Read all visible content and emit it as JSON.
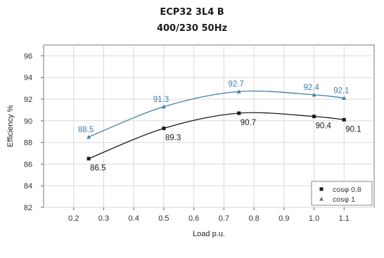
{
  "chart_data": {
    "type": "line",
    "title": "ECP32 3L4 B",
    "subtitle": "400/230 50Hz",
    "xlabel": "Load p.u.",
    "ylabel": "Efficiency %",
    "xlim": [
      0.1,
      1.2
    ],
    "ylim": [
      82,
      97
    ],
    "xticks": [
      "0.2",
      "0.3",
      "0.4",
      "0.5",
      "0.6",
      "0.7",
      "0.8",
      "0.9",
      "1.0",
      "1.1"
    ],
    "yticks": [
      "82",
      "84",
      "86",
      "88",
      "90",
      "92",
      "94",
      "96"
    ],
    "grid": true,
    "legend_position": "bottom-right",
    "series": [
      {
        "name": "cosφ 0.8",
        "marker": "square",
        "color": "#1a1a1a",
        "x": [
          0.25,
          0.5,
          0.75,
          1.0,
          1.1
        ],
        "y": [
          86.5,
          89.3,
          90.7,
          90.4,
          90.1
        ],
        "labels": [
          "86.5",
          "89.3",
          "90.7",
          "90.4",
          "90.1"
        ]
      },
      {
        "name": "cosφ 1",
        "marker": "triangle",
        "color": "#3f7fa6",
        "x": [
          0.25,
          0.5,
          0.75,
          1.0,
          1.1
        ],
        "y": [
          88.5,
          91.3,
          92.7,
          92.4,
          92.1
        ],
        "labels": [
          "88.5",
          "91.3",
          "92.7",
          "92.4",
          "92.1"
        ]
      }
    ]
  }
}
